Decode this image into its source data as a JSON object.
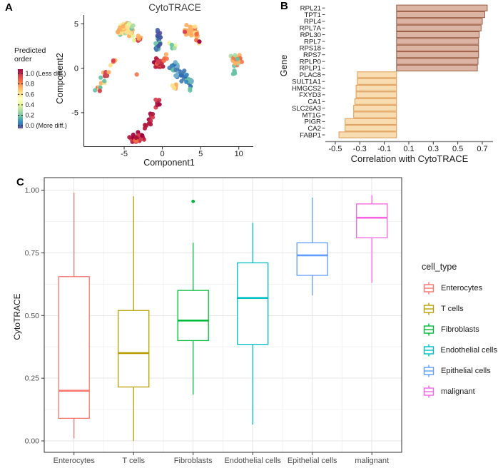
{
  "panels": {
    "a": "A",
    "b": "B",
    "c": "C"
  },
  "chart_data": [
    {
      "type": "scatter",
      "panel": "A",
      "title": "CytoTRACE",
      "xlabel": "Component1",
      "ylabel": "Component2",
      "xlim": [
        -10.3,
        11.9
      ],
      "ylim": [
        -8.8,
        6.0
      ],
      "xticks": [
        {
          "v": -5,
          "label": "-5"
        },
        {
          "v": 0,
          "label": "0"
        },
        {
          "v": 5,
          "label": "5"
        },
        {
          "v": 10,
          "label": "10"
        }
      ],
      "yticks": [
        {
          "v": -5,
          "label": "-5"
        },
        {
          "v": 0,
          "label": "0"
        },
        {
          "v": 5,
          "label": "5"
        }
      ],
      "colorbar": {
        "title_line1": "Predicted",
        "title_line2": "order",
        "colors": [
          "#9E0142",
          "#D53E4F",
          "#F46D43",
          "#FDAE61",
          "#FEE08B",
          "#FFFFBF",
          "#E6F598",
          "#ABDDA4",
          "#66C2A5",
          "#3288BD",
          "#5E4FA2"
        ],
        "entries": [
          {
            "t": 1.0,
            "label": "1.0 (Less diff.)"
          },
          {
            "t": 0.8,
            "label": "0.8"
          },
          {
            "t": 0.6,
            "label": "0.6"
          },
          {
            "t": 0.4,
            "label": "0.4"
          },
          {
            "t": 0.2,
            "label": "0.2"
          },
          {
            "t": 0.0,
            "label": "0.0 (More diff.)"
          }
        ]
      },
      "point_radius": 3.1,
      "clusters": [
        {
          "name": "top-left-blob",
          "kind": "blob",
          "n": 52,
          "cx": -4.7,
          "cy": 4.4,
          "sx": 1.5,
          "sy": 0.95,
          "colors": [
            "#FEE08B",
            "#FDAE61",
            "#FEE08B",
            "#E6F598",
            "#FDAE61",
            "#ABDDA4",
            "#FED97E",
            "#F4A85B",
            "#66C2A5",
            "#FEE08B",
            "#FDAE61"
          ]
        },
        {
          "name": "top-left-tail",
          "kind": "blob",
          "n": 10,
          "cx": -3.1,
          "cy": 3.4,
          "sx": 0.7,
          "sy": 0.55,
          "colors": [
            "#FDAE61",
            "#FEE08B",
            "#F46D43",
            "#D53E4F",
            "#E6F598"
          ]
        },
        {
          "name": "left-chain",
          "kind": "chain",
          "n": 24,
          "x1": -6.3,
          "y1": 1.1,
          "x2": -8.5,
          "y2": -2.5,
          "jx": 0.35,
          "jy": 0.3,
          "colors": [
            "#D53E4F",
            "#F46D43",
            "#FDAE61",
            "#C22E49",
            "#FEE08B",
            "#D53E4F",
            "#66C2A5",
            "#F46D43"
          ]
        },
        {
          "name": "isolated-orange-dot",
          "kind": "blob",
          "n": 1,
          "cx": -3.35,
          "cy": -0.7,
          "sx": 0,
          "sy": 0,
          "colors": [
            "#F4764F"
          ]
        },
        {
          "name": "center-indigo-chain",
          "kind": "chain",
          "n": 24,
          "x1": -0.35,
          "y1": 4.3,
          "x2": -0.75,
          "y2": 1.9,
          "jx": 0.3,
          "jy": 0.25,
          "colors": [
            "#4B66AE",
            "#3F51A3",
            "#4575B4",
            "#5E4FA2",
            "#66C2A5",
            "#3288BD",
            "#41519E"
          ]
        },
        {
          "name": "center-red-blob",
          "kind": "blob",
          "n": 36,
          "cx": -0.55,
          "cy": 0.55,
          "sx": 0.8,
          "sy": 0.75,
          "colors": [
            "#B0173B",
            "#D53E4F",
            "#9E0142",
            "#C22E49",
            "#F46D43",
            "#D53E4F",
            "#B0173B"
          ]
        },
        {
          "name": "center-orange-edge",
          "kind": "blob",
          "n": 6,
          "cx": 0.35,
          "cy": 1.1,
          "sx": 0.45,
          "sy": 0.55,
          "colors": [
            "#F46D43",
            "#FDAE61",
            "#F4764F"
          ]
        },
        {
          "name": "center-blue-blob",
          "kind": "chain",
          "n": 42,
          "x1": 1.3,
          "y1": 0.4,
          "x2": 3.5,
          "y2": -1.8,
          "jx": 0.6,
          "jy": 0.5,
          "colors": [
            "#3288BD",
            "#4A7FB5",
            "#2E6DB4",
            "#3288BD",
            "#74ADD1",
            "#3288BD",
            "#66C2A5",
            "#4A7FB5"
          ]
        },
        {
          "name": "below-blue-yellow",
          "kind": "blob",
          "n": 8,
          "cx": 1.7,
          "cy": -2.2,
          "sx": 0.55,
          "sy": 0.5,
          "colors": [
            "#FDAE61",
            "#FEE08B",
            "#F4A85B"
          ]
        },
        {
          "name": "teal-right-dots",
          "kind": "blob",
          "n": 2,
          "cx": 3.6,
          "cy": -2.4,
          "sx": 0.2,
          "sy": 0.2,
          "colors": [
            "#66C2A5"
          ]
        },
        {
          "name": "top-right-cluster",
          "kind": "blob",
          "n": 28,
          "cx": 3.9,
          "cy": 4.2,
          "sx": 1.2,
          "sy": 0.95,
          "colors": [
            "#FDAE61",
            "#FEE08B",
            "#F46D43",
            "#FDAE61",
            "#E6F598",
            "#FEE08B",
            "#D53E4F",
            "#FDAE61"
          ]
        },
        {
          "name": "top-right-arm",
          "kind": "chain",
          "n": 6,
          "x1": 4.2,
          "y1": 3.8,
          "x2": 4.9,
          "y2": 2.9,
          "jx": 0.2,
          "jy": 0.2,
          "colors": [
            "#FDAE61",
            "#F46D43",
            "#FEE08B"
          ]
        },
        {
          "name": "dark-red-dot",
          "kind": "blob",
          "n": 1,
          "cx": 4.85,
          "cy": 3.0,
          "sx": 0,
          "sy": 0,
          "colors": [
            "#9E0142"
          ]
        },
        {
          "name": "green-connectors",
          "kind": "blob",
          "n": 6,
          "cx": 1.4,
          "cy": 2.5,
          "sx": 0.7,
          "sy": 0.5,
          "colors": [
            "#ABDDA4",
            "#E6F598",
            "#66C2A5"
          ]
        },
        {
          "name": "far-right-cluster",
          "kind": "blob",
          "n": 28,
          "cx": 9.8,
          "cy": 1.0,
          "sx": 1.0,
          "sy": 1.0,
          "colors": [
            "#F46D43",
            "#FDAE61",
            "#F4764F",
            "#FEE08B",
            "#D53E4F",
            "#FDAE61",
            "#ABDDA4",
            "#66C2A5",
            "#F46D43"
          ]
        },
        {
          "name": "far-right-tail",
          "kind": "blob",
          "n": 4,
          "cx": 9.4,
          "cy": -0.5,
          "sx": 0.3,
          "sy": 0.4,
          "colors": [
            "#FEE08B",
            "#66C2A5",
            "#FDAE61"
          ]
        },
        {
          "name": "bottom-chain",
          "kind": "chain",
          "n": 17,
          "x1": -0.4,
          "y1": -3.7,
          "x2": -2.1,
          "y2": -6.6,
          "jx": 0.4,
          "jy": 0.3,
          "colors": [
            "#B0173B",
            "#9E0142",
            "#C22E49",
            "#D53E4F",
            "#B0173B"
          ]
        },
        {
          "name": "bottom-mass",
          "kind": "blob",
          "n": 32,
          "cx": -3.3,
          "cy": -7.8,
          "sx": 1.1,
          "sy": 0.75,
          "colors": [
            "#9E0142",
            "#B0173B",
            "#A60F3C",
            "#C22E49",
            "#9E0142",
            "#D53E4F",
            "#F46D43",
            "#B0173B"
          ]
        }
      ]
    },
    {
      "type": "bar",
      "panel": "B",
      "orientation": "horizontal",
      "ylabel": "Gene",
      "xlabel": "Correlation with CytoTRACE",
      "categories": [
        "RPL21",
        "TPT1",
        "RPL4",
        "RPL7A",
        "RPL30",
        "RPL7",
        "RPS18",
        "RPS7",
        "RPLP0",
        "RPLP1",
        "PLAC8",
        "SULT1A1",
        "HMGCS2",
        "FXYD3",
        "CA1",
        "SLC26A3",
        "MT1G",
        "PIGR",
        "CA2",
        "FABP1"
      ],
      "values": [
        0.74,
        0.72,
        0.7,
        0.69,
        0.675,
        0.67,
        0.67,
        0.67,
        0.665,
        0.66,
        -0.32,
        -0.32,
        -0.33,
        -0.33,
        -0.34,
        -0.35,
        -0.35,
        -0.42,
        -0.42,
        -0.47
      ],
      "xlim": [
        -0.55,
        0.78
      ],
      "xticks": [
        {
          "v": -0.5,
          "label": "-0.5"
        },
        {
          "v": -0.3,
          "label": "-0.3"
        },
        {
          "v": -0.1,
          "label": "-0.1"
        },
        {
          "v": 0.1,
          "label": "0.1"
        },
        {
          "v": 0.3,
          "label": "0.3"
        },
        {
          "v": 0.5,
          "label": "0.5"
        },
        {
          "v": 0.7,
          "label": "0.7"
        }
      ],
      "positive_style": {
        "fill": "#DCB4A4",
        "stroke": "#9A5A40"
      },
      "negative_style": {
        "fill": "#F8DDB2",
        "stroke": "#DE9A52"
      }
    },
    {
      "type": "boxplot",
      "panel": "C",
      "ylabel": "CytoTRACE",
      "legend_title": "cell_type",
      "ylim": [
        0,
        1
      ],
      "yticks": [
        {
          "v": 1.0,
          "label": "1.00"
        },
        {
          "v": 0.75,
          "label": "0.75"
        },
        {
          "v": 0.5,
          "label": "0.50"
        },
        {
          "v": 0.25,
          "label": "0.25"
        },
        {
          "v": 0.0,
          "label": "0.00"
        }
      ],
      "groups": [
        {
          "label": "Enterocytes",
          "color": "#F8766D",
          "min": 0.01,
          "q1": 0.09,
          "median": 0.2,
          "q3": 0.655,
          "max": 0.99,
          "outliers": []
        },
        {
          "label": "T cells",
          "color": "#B79F00",
          "min": 0.0,
          "q1": 0.215,
          "median": 0.35,
          "q3": 0.52,
          "max": 0.975,
          "outliers": []
        },
        {
          "label": "Fibroblasts",
          "color": "#00BA38",
          "min": 0.185,
          "q1": 0.4,
          "median": 0.48,
          "q3": 0.6,
          "max": 0.79,
          "outliers": [
            0.955
          ]
        },
        {
          "label": "Endothelial cells",
          "color": "#00BFC4",
          "min": 0.065,
          "q1": 0.385,
          "median": 0.57,
          "q3": 0.71,
          "max": 0.87,
          "outliers": []
        },
        {
          "label": "Epithelial cells",
          "color": "#619CFF",
          "min": 0.58,
          "q1": 0.66,
          "median": 0.74,
          "q3": 0.79,
          "max": 0.97,
          "outliers": []
        },
        {
          "label": "malignant",
          "color": "#F564E3",
          "min": 0.63,
          "q1": 0.81,
          "median": 0.89,
          "q3": 0.945,
          "max": 0.98,
          "outliers": []
        }
      ]
    }
  ]
}
